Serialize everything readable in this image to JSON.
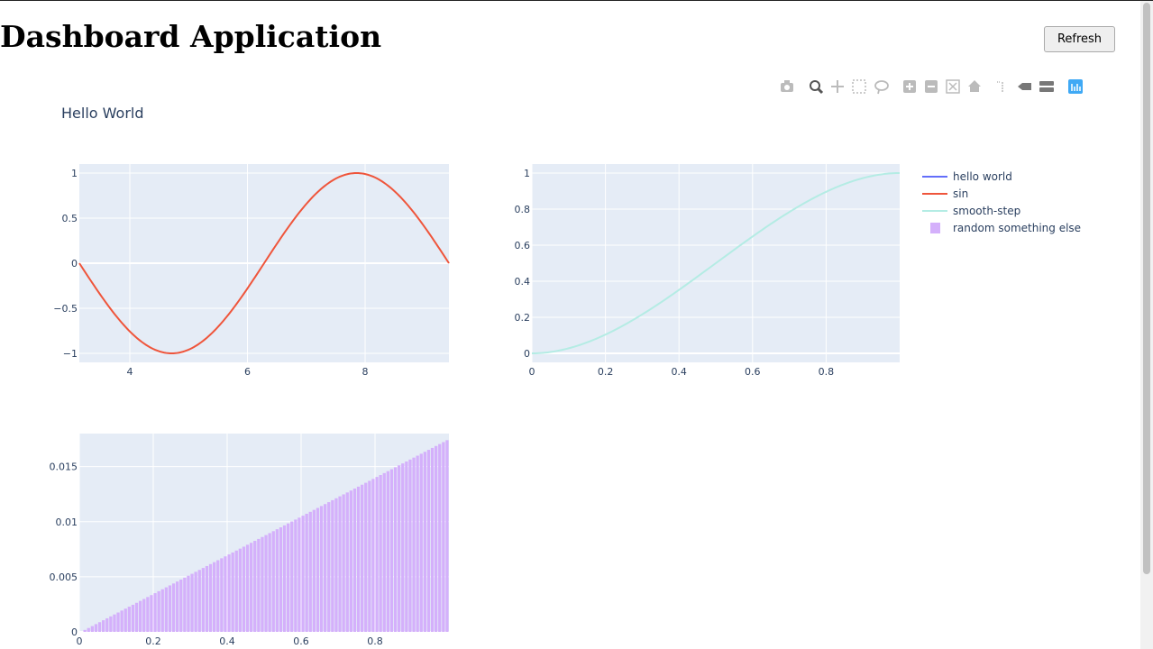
{
  "header": {
    "title": "Dashboard Application",
    "refresh_label": "Refresh"
  },
  "figure": {
    "title": "Hello World",
    "plot_bg": "#e5ecf6",
    "grid_color": "#ffffff",
    "text_color": "#2a3f5f",
    "modebar_active_color": "#3fa9f5",
    "modebar_color": "#bbbbbb",
    "modebar_icons": [
      "camera-icon",
      "zoom-icon",
      "pan-icon",
      "box-select-icon",
      "lasso-icon",
      "zoom-in-icon",
      "zoom-out-icon",
      "autoscale-icon",
      "reset-axes-icon",
      "spike-lines-icon",
      "hover-closest-icon",
      "hover-compare-icon",
      "plotly-logo-icon"
    ]
  },
  "legend": {
    "placement": "top-right",
    "items": [
      {
        "name": "hello world",
        "color": "#636efa",
        "kind": "line"
      },
      {
        "name": "sin",
        "color": "#ef553b",
        "kind": "line"
      },
      {
        "name": "smooth-step",
        "color": "#b4ece4",
        "kind": "line"
      },
      {
        "name": "random something else",
        "color": "#d4b0fb",
        "kind": "bar"
      }
    ]
  },
  "chart_data": [
    {
      "type": "line",
      "series": [
        {
          "name": "sin",
          "function": "sin(x)",
          "color": "#ef553b"
        }
      ],
      "xlim": [
        3.1416,
        9.4248
      ],
      "ylim": [
        -1.1,
        1.1
      ],
      "xticks": [
        4,
        6,
        8
      ],
      "xtick_labels": [
        "4",
        "6",
        "8"
      ],
      "yticks": [
        -1,
        -0.5,
        0,
        0.5,
        1
      ],
      "ytick_labels": [
        "−1",
        "−0.5",
        "0",
        "0.5",
        "1"
      ],
      "grid": true
    },
    {
      "type": "line",
      "series": [
        {
          "name": "smooth-step",
          "function": "3x^2 - 2x^3",
          "color": "#b4ece4"
        }
      ],
      "xlim": [
        0,
        1
      ],
      "ylim": [
        -0.05,
        1.05
      ],
      "xticks": [
        0,
        0.2,
        0.4,
        0.6,
        0.8
      ],
      "xtick_labels": [
        "0",
        "0.2",
        "0.4",
        "0.6",
        "0.8"
      ],
      "yticks": [
        0,
        0.2,
        0.4,
        0.6,
        0.8,
        1
      ],
      "ytick_labels": [
        "0",
        "0.2",
        "0.4",
        "0.6",
        "0.8",
        "1"
      ],
      "grid": true
    },
    {
      "type": "bar",
      "series": [
        {
          "name": "random something else",
          "color": "#d4b0fb",
          "bar_count": 100,
          "x_start": 0,
          "x_step": 0.01,
          "y_end": 0.0174
        }
      ],
      "xlim": [
        0,
        1
      ],
      "ylim": [
        0,
        0.018
      ],
      "xticks": [
        0,
        0.2,
        0.4,
        0.6,
        0.8
      ],
      "xtick_labels": [
        "0",
        "0.2",
        "0.4",
        "0.6",
        "0.8"
      ],
      "yticks": [
        0,
        0.005,
        0.01,
        0.015
      ],
      "ytick_labels": [
        "0",
        "0.005",
        "0.01",
        "0.015"
      ],
      "grid": true
    }
  ]
}
